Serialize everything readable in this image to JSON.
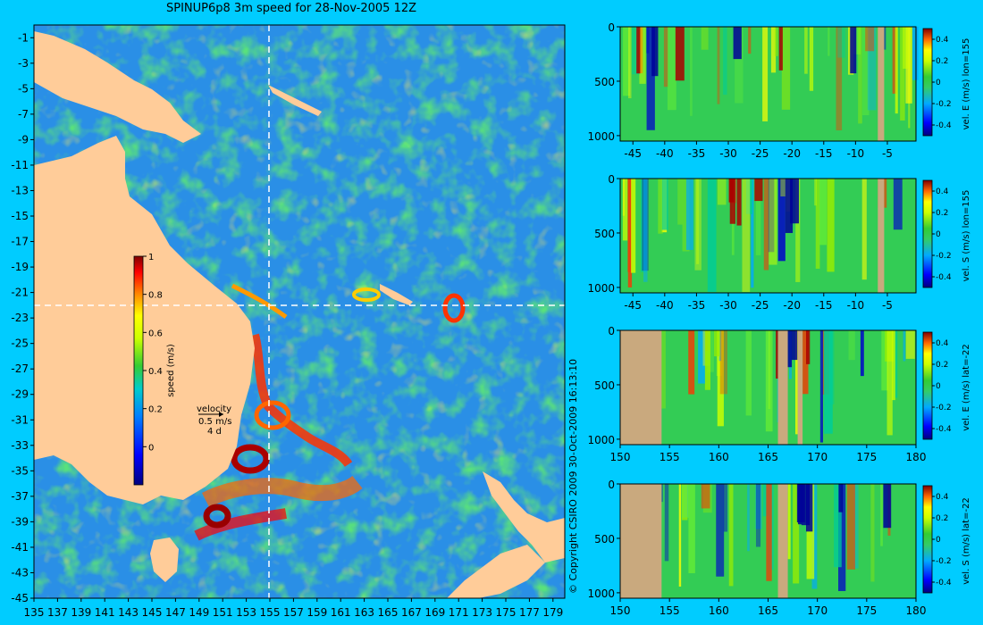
{
  "title": "SPINUP6p8 3m speed for 28-Nov-2005 12Z",
  "copyright": "© Copyright CSIRO 2009   30-Oct-2009 16:13:10",
  "colors": {
    "background": "#00ccff",
    "land": "#ffcc99",
    "section_land": "#c9a97e",
    "cross_line": "#ffffff"
  },
  "map": {
    "x_ticks": [
      "135",
      "137",
      "139",
      "141",
      "143",
      "145",
      "147",
      "149",
      "151",
      "153",
      "155",
      "157",
      "159",
      "161",
      "163",
      "165",
      "167",
      "169",
      "171",
      "173",
      "175",
      "177",
      "179"
    ],
    "y_ticks": [
      "-1",
      "-3",
      "-5",
      "-7",
      "-9",
      "-11",
      "-13",
      "-15",
      "-17",
      "-19",
      "-21",
      "-23",
      "-25",
      "-27",
      "-29",
      "-31",
      "-33",
      "-35",
      "-37",
      "-39",
      "-41",
      "-43",
      "-45"
    ],
    "xlim": [
      135,
      180
    ],
    "ylim": [
      -45,
      0
    ],
    "section_lon": 155,
    "section_lat": -22,
    "colorbar": {
      "label": "speed (m/s)",
      "ticks": [
        "0",
        "0.2",
        "0.4",
        "0.6",
        "0.8",
        "1"
      ],
      "range": [
        -0.2,
        1
      ]
    },
    "velocity_key": {
      "label": "velocity",
      "speed": "0.5 m/s",
      "days": "4 d"
    }
  },
  "panels": [
    {
      "cbar_label": "vel. E (m/s) lon=155",
      "x_ticks": [
        "-45",
        "-40",
        "-35",
        "-30",
        "-25",
        "-20",
        "-15",
        "-10",
        "-5"
      ],
      "y_ticks": [
        "0",
        "500",
        "1000"
      ],
      "cbar_ticks": [
        "0.4",
        "0.2",
        "0",
        "-0.2",
        "-0.4"
      ]
    },
    {
      "cbar_label": "vel. S (m/s) lon=155",
      "x_ticks": [
        "-45",
        "-40",
        "-35",
        "-30",
        "-25",
        "-20",
        "-15",
        "-10",
        "-5"
      ],
      "y_ticks": [
        "0",
        "500",
        "1000"
      ],
      "cbar_ticks": [
        "0.4",
        "0.2",
        "0",
        "-0.2",
        "-0.4"
      ]
    },
    {
      "cbar_label": "vel. E (m/s) lat=-22",
      "x_ticks": [
        "150",
        "155",
        "160",
        "165",
        "170",
        "175",
        "180"
      ],
      "y_ticks": [
        "0",
        "500",
        "1000"
      ],
      "cbar_ticks": [
        "0.4",
        "0.2",
        "0",
        "-0.2",
        "-0.4"
      ]
    },
    {
      "cbar_label": "vel. S (m/s) lat=-22",
      "x_ticks": [
        "150",
        "155",
        "160",
        "165",
        "170",
        "175",
        "180"
      ],
      "y_ticks": [
        "0",
        "500",
        "1000"
      ],
      "cbar_ticks": [
        "0.4",
        "0.2",
        "0",
        "-0.2",
        "-0.4"
      ]
    }
  ]
}
